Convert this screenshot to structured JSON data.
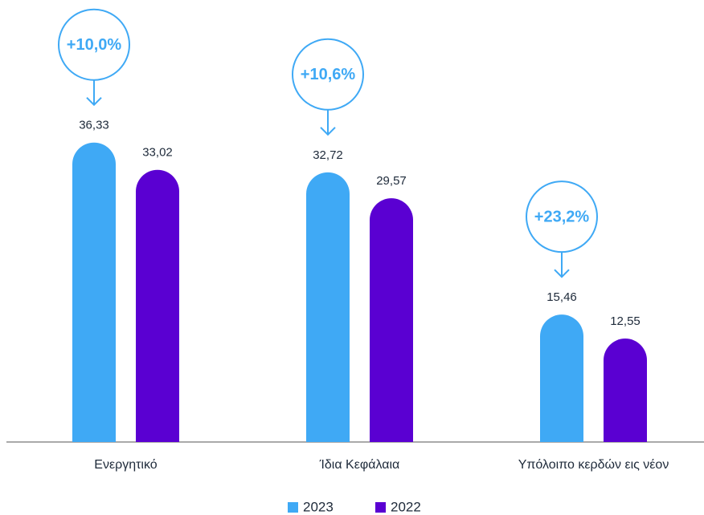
{
  "chart_data": {
    "type": "bar",
    "categories": [
      "Ενεργητικό",
      "Ίδια Κεφάλαια",
      "Υπόλοιπο κερδών εις νέον"
    ],
    "series": [
      {
        "name": "2023",
        "color": "#3fa9f5",
        "values": [
          36.33,
          32.72,
          15.46
        ],
        "value_labels": [
          "36,33",
          "32,72",
          "15,46"
        ]
      },
      {
        "name": "2022",
        "color": "#5a00d2",
        "values": [
          33.02,
          29.57,
          12.55
        ],
        "value_labels": [
          "33,02",
          "29,57",
          "12,55"
        ]
      }
    ],
    "annotations": [
      "+10,0%",
      "+10,6%",
      "+23,2%"
    ],
    "ylim": [
      0,
      40
    ]
  }
}
